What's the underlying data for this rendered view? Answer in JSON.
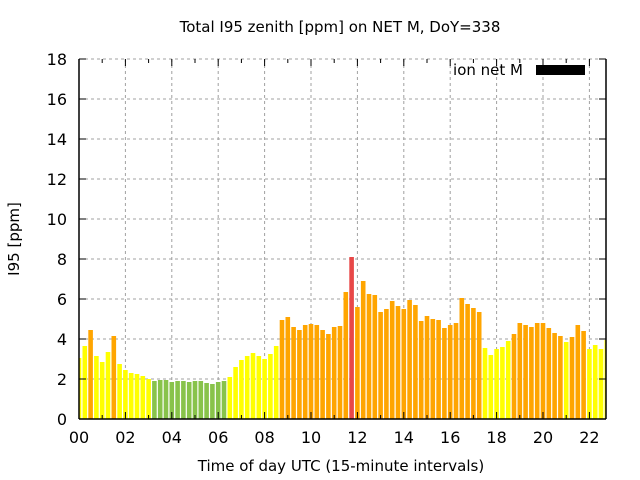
{
  "chart_data": {
    "type": "bar",
    "title": "Total I95 zenith [ppm] on NET M, DoY=338",
    "xlabel": "Time of day UTC (15-minute intervals)",
    "ylabel": "I95 [ppm]",
    "xlim_hours": [
      0,
      22.7
    ],
    "ylim": [
      0,
      18
    ],
    "grid": true,
    "legend": {
      "placement": "top-right",
      "entries": [
        {
          "label": "ion net M",
          "color": "#000000"
        }
      ]
    },
    "bin_minutes": 15,
    "x_ticks": [
      {
        "value": 0,
        "label": "00"
      },
      {
        "value": 2,
        "label": "02"
      },
      {
        "value": 4,
        "label": "04"
      },
      {
        "value": 6,
        "label": "06"
      },
      {
        "value": 8,
        "label": "08"
      },
      {
        "value": 10,
        "label": "10"
      },
      {
        "value": 12,
        "label": "12"
      },
      {
        "value": 14,
        "label": "14"
      },
      {
        "value": 16,
        "label": "16"
      },
      {
        "value": 18,
        "label": "18"
      },
      {
        "value": 20,
        "label": "20"
      },
      {
        "value": 22,
        "label": "22"
      }
    ],
    "y_ticks": [
      {
        "value": 0,
        "label": "0"
      },
      {
        "value": 2,
        "label": "2"
      },
      {
        "value": 4,
        "label": "4"
      },
      {
        "value": 6,
        "label": "6"
      },
      {
        "value": 8,
        "label": "8"
      },
      {
        "value": 10,
        "label": "10"
      },
      {
        "value": 12,
        "label": "12"
      },
      {
        "value": 14,
        "label": "14"
      },
      {
        "value": 16,
        "label": "16"
      },
      {
        "value": 18,
        "label": "18"
      }
    ],
    "color_scale": [
      {
        "min": 0,
        "max": 2,
        "color": "#88c34a"
      },
      {
        "min": 2,
        "max": 4,
        "color": "#ffff00"
      },
      {
        "min": 4,
        "max": 8,
        "color": "#ffa500"
      },
      {
        "min": 8,
        "max": 100,
        "color": "#e84848"
      }
    ],
    "values": [
      3.05,
      3.65,
      4.45,
      3.15,
      2.85,
      3.35,
      4.15,
      2.75,
      2.45,
      2.3,
      2.25,
      2.15,
      2.0,
      1.9,
      1.95,
      1.95,
      1.85,
      1.9,
      1.9,
      1.85,
      1.9,
      1.9,
      1.8,
      1.75,
      1.85,
      1.9,
      2.1,
      2.6,
      2.95,
      3.15,
      3.3,
      3.15,
      3.0,
      3.25,
      3.65,
      4.95,
      5.1,
      4.6,
      4.45,
      4.7,
      4.75,
      4.7,
      4.45,
      4.25,
      4.6,
      4.65,
      6.35,
      8.1,
      5.6,
      6.9,
      6.25,
      6.2,
      5.35,
      5.5,
      5.9,
      5.65,
      5.5,
      5.95,
      5.7,
      4.9,
      5.15,
      5.0,
      4.95,
      4.55,
      4.7,
      4.8,
      6.05,
      5.75,
      5.55,
      5.35,
      3.55,
      3.2,
      3.5,
      3.6,
      3.9,
      4.25,
      4.8,
      4.7,
      4.6,
      4.8,
      4.8,
      4.55,
      4.3,
      4.15,
      3.85,
      4.1,
      4.7,
      4.4,
      3.5,
      3.7,
      3.5,
      3.95
    ]
  }
}
